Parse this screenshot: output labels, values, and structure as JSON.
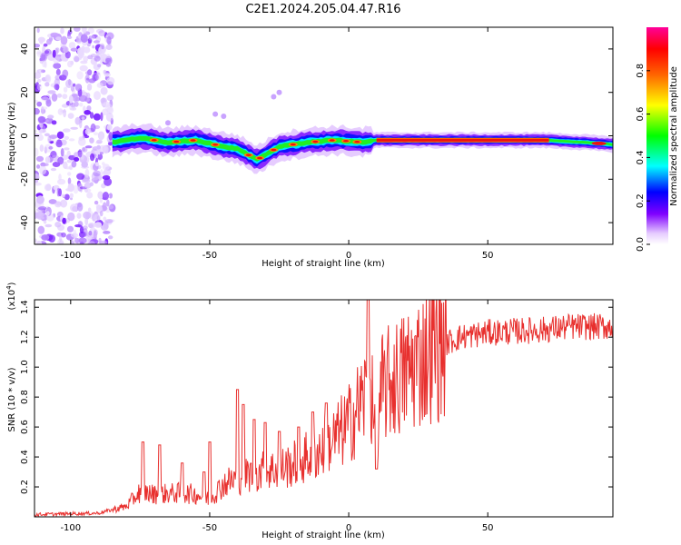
{
  "title": "C2E1.2024.205.04.47.R16",
  "chart_data": [
    {
      "type": "heatmap",
      "xlabel": "Height of straight line (km)",
      "ylabel": "Frequency (Hz)",
      "xlim": [
        -113,
        95
      ],
      "ylim": [
        -50,
        50
      ],
      "xticks": [
        -100,
        -50,
        0,
        50
      ],
      "yticks": [
        -40,
        -20,
        0,
        20,
        40
      ],
      "colorbar": {
        "label": "Normalized spectral amplitude",
        "range": [
          0,
          1
        ],
        "ticks": [
          0.0,
          0.2,
          0.4,
          0.6,
          0.8
        ],
        "colors": [
          "#ffffff",
          "#cc99ff",
          "#6600ff",
          "#0000ff",
          "#00ffff",
          "#00ff00",
          "#ffff00",
          "#ff6600",
          "#ff0000",
          "#ff0099"
        ]
      },
      "noise_region": {
        "x": [
          -113,
          -85
        ],
        "y": [
          -50,
          50
        ]
      },
      "ridge": [
        {
          "x": -85,
          "y": -3
        },
        {
          "x": -75,
          "y": -1
        },
        {
          "x": -65,
          "y": -3
        },
        {
          "x": -55,
          "y": -2
        },
        {
          "x": -45,
          "y": -5
        },
        {
          "x": -40,
          "y": -6
        },
        {
          "x": -33,
          "y": -11
        },
        {
          "x": -25,
          "y": -5
        },
        {
          "x": -15,
          "y": -3
        },
        {
          "x": -5,
          "y": -2
        },
        {
          "x": 5,
          "y": -3
        },
        {
          "x": 10,
          "y": -2
        },
        {
          "x": 30,
          "y": -2
        },
        {
          "x": 50,
          "y": -2
        },
        {
          "x": 70,
          "y": -2
        },
        {
          "x": 85,
          "y": -3
        },
        {
          "x": 95,
          "y": -4
        }
      ]
    },
    {
      "type": "line",
      "xlabel": "Height of straight line (km)",
      "ylabel": "SNR (10 * v/v)",
      "yunit_label": "(x10",
      "yunit_exp": "4",
      "yunit_close": ")",
      "xlim": [
        -113,
        95
      ],
      "ylim": [
        0,
        14500
      ],
      "xticks": [
        -100,
        -50,
        0,
        50
      ],
      "yticks": [
        2000,
        4000,
        6000,
        8000,
        10000,
        12000,
        14000
      ],
      "ytick_labels": [
        "0.2",
        "0.4",
        "0.6",
        "0.8",
        "1.0",
        "1.2",
        "1.4"
      ],
      "color": "#e8302e",
      "series_trend": {
        "x": [
          -113,
          -90,
          -80,
          -75,
          -70,
          -60,
          -55,
          -50,
          -45,
          -40,
          -35,
          -30,
          -25,
          -20,
          -15,
          -10,
          -5,
          0,
          5,
          8,
          10,
          12,
          20,
          30,
          40,
          50,
          60,
          70,
          80,
          95
        ],
        "y": [
          150,
          250,
          700,
          1700,
          1500,
          1600,
          1500,
          1200,
          2200,
          2600,
          2900,
          3100,
          3200,
          3500,
          4000,
          4500,
          5200,
          6200,
          7800,
          8500,
          4000,
          8600,
          9600,
          11200,
          12000,
          12300,
          12400,
          12500,
          12700,
          12700
        ]
      },
      "spikes": [
        {
          "x": -74,
          "y": 5000
        },
        {
          "x": -68,
          "y": 4800
        },
        {
          "x": -60,
          "y": 3600
        },
        {
          "x": -52,
          "y": 3000
        },
        {
          "x": -50,
          "y": 5000
        },
        {
          "x": -40,
          "y": 8500
        },
        {
          "x": -38,
          "y": 7500
        },
        {
          "x": -34,
          "y": 6500
        },
        {
          "x": -30,
          "y": 6300
        },
        {
          "x": -25,
          "y": 5700
        },
        {
          "x": -18,
          "y": 6000
        },
        {
          "x": -13,
          "y": 7000
        },
        {
          "x": -8,
          "y": 7600
        },
        {
          "x": 7,
          "y": 14500
        },
        {
          "x": 10,
          "y": 3200
        }
      ],
      "sample_count": 900
    }
  ]
}
